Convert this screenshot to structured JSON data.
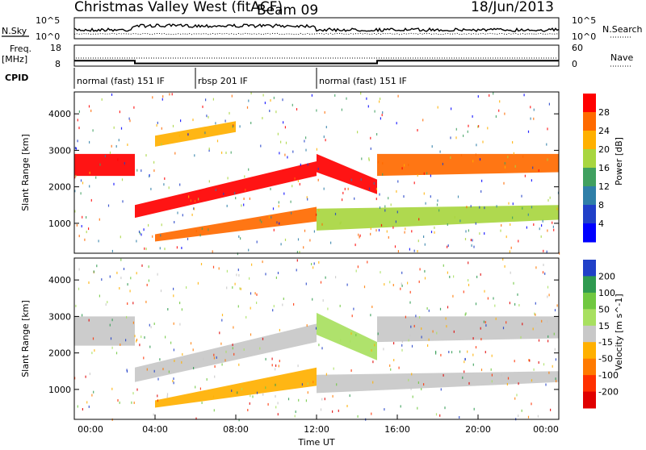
{
  "header": {
    "station": "Christmas Valley West (fitACF)",
    "beam": "Beam 09",
    "date": "18/Jun/2013"
  },
  "status_panel": {
    "nsky_label": "N.Sky",
    "nsearch_label": "N.Search",
    "freq_label": "Freq.",
    "freq_unit": "[MHz]",
    "nave_label": "Nave",
    "cpid_label": "CPID",
    "noise_ticks": [
      "10^5",
      "10^0"
    ],
    "noise_right_ticks": [
      "10^5",
      "10^0"
    ],
    "freq_ticks": [
      "18",
      "8"
    ],
    "nave_ticks": [
      "60",
      "0"
    ],
    "freq_value_mhz": [
      {
        "t_start": 0,
        "t_end": 3,
        "value": 10.6
      },
      {
        "t_start": 3,
        "t_end": 15,
        "value": 9.3
      },
      {
        "t_start": 15,
        "t_end": 24,
        "value": 10.6
      }
    ],
    "cpid_segments": [
      {
        "t_start": 0,
        "t_end": 6,
        "label": "normal (fast) 151 IF"
      },
      {
        "t_start": 6,
        "t_end": 12,
        "label": "rbsp 201 IF"
      },
      {
        "t_start": 12,
        "t_end": 24,
        "label": "normal (fast) 151 IF"
      }
    ]
  },
  "chart_data": [
    {
      "type": "heatmap",
      "name": "power",
      "ylabel": "Slant Range [km]",
      "xlabel": "Time UT",
      "x_ticks": [
        "00:00",
        "04:00",
        "08:00",
        "12:00",
        "16:00",
        "20:00",
        "00:00"
      ],
      "xlim_hours": [
        0,
        24
      ],
      "ylim_km": [
        180,
        4600
      ],
      "y_ticks": [
        1000,
        2000,
        3000,
        4000
      ],
      "colorbar": {
        "label": "Power [dB]",
        "ticks": [
          "28",
          "24",
          "20",
          "16",
          "12",
          "8",
          "4"
        ],
        "colors": [
          "#ff0000",
          "#ff6a00",
          "#ffb000",
          "#a8d640",
          "#40a060",
          "#2f7fa8",
          "#2040c8",
          "#0000ff"
        ]
      },
      "bands": [
        {
          "t": [
            0,
            3
          ],
          "r_low": [
            2300,
            2300
          ],
          "r_high": [
            2900,
            2900
          ],
          "level": 0
        },
        {
          "t": [
            3,
            12
          ],
          "r_low": [
            1150,
            2300
          ],
          "r_high": [
            1500,
            2700
          ],
          "level": 0
        },
        {
          "t": [
            12,
            15
          ],
          "r_low": [
            2400,
            1800
          ],
          "r_high": [
            2900,
            2200
          ],
          "level": 0
        },
        {
          "t": [
            15,
            24
          ],
          "r_low": [
            2300,
            2400
          ],
          "r_high": [
            2900,
            2900
          ],
          "level": 1
        },
        {
          "t": [
            4,
            12
          ],
          "r_low": [
            500,
            1050
          ],
          "r_high": [
            700,
            1450
          ],
          "level": 1
        },
        {
          "t": [
            4,
            8
          ],
          "r_low": [
            3100,
            3500
          ],
          "r_high": [
            3400,
            3800
          ],
          "level": 2
        },
        {
          "t": [
            12,
            24
          ],
          "r_low": [
            800,
            1100
          ],
          "r_high": [
            1400,
            1500
          ],
          "level": 3
        }
      ]
    },
    {
      "type": "heatmap",
      "name": "velocity",
      "ylabel": "Slant Range [km]",
      "xlabel": "Time UT",
      "x_ticks": [
        "00:00",
        "04:00",
        "08:00",
        "12:00",
        "16:00",
        "20:00",
        "00:00"
      ],
      "xlim_hours": [
        0,
        24
      ],
      "ylim_km": [
        180,
        4600
      ],
      "y_ticks": [
        1000,
        2000,
        3000,
        4000
      ],
      "colorbar": {
        "label": "Velocity [m s^-1]",
        "ticks": [
          "200",
          "100",
          "50",
          "15",
          "-15",
          "-50",
          "-100",
          "-200"
        ],
        "colors": [
          "#2040c8",
          "#2f9a50",
          "#70c840",
          "#a8e060",
          "#c8c8c8",
          "#ffb000",
          "#ff7a00",
          "#ff3000",
          "#e00000"
        ]
      },
      "bands": [
        {
          "t": [
            0,
            3
          ],
          "r_low": [
            2200,
            2200
          ],
          "r_high": [
            3000,
            3000
          ],
          "level": 4
        },
        {
          "t": [
            3,
            12
          ],
          "r_low": [
            1200,
            2300
          ],
          "r_high": [
            1600,
            2800
          ],
          "level": 4
        },
        {
          "t": [
            12,
            15
          ],
          "r_low": [
            2500,
            1800
          ],
          "r_high": [
            3100,
            2300
          ],
          "level": 3
        },
        {
          "t": [
            15,
            24
          ],
          "r_low": [
            2300,
            2400
          ],
          "r_high": [
            3000,
            3000
          ],
          "level": 4
        },
        {
          "t": [
            4,
            12
          ],
          "r_low": [
            500,
            1100
          ],
          "r_high": [
            700,
            1600
          ],
          "level": 5
        },
        {
          "t": [
            12,
            24
          ],
          "r_low": [
            900,
            1200
          ],
          "r_high": [
            1400,
            1500
          ],
          "level": 4
        }
      ]
    }
  ]
}
